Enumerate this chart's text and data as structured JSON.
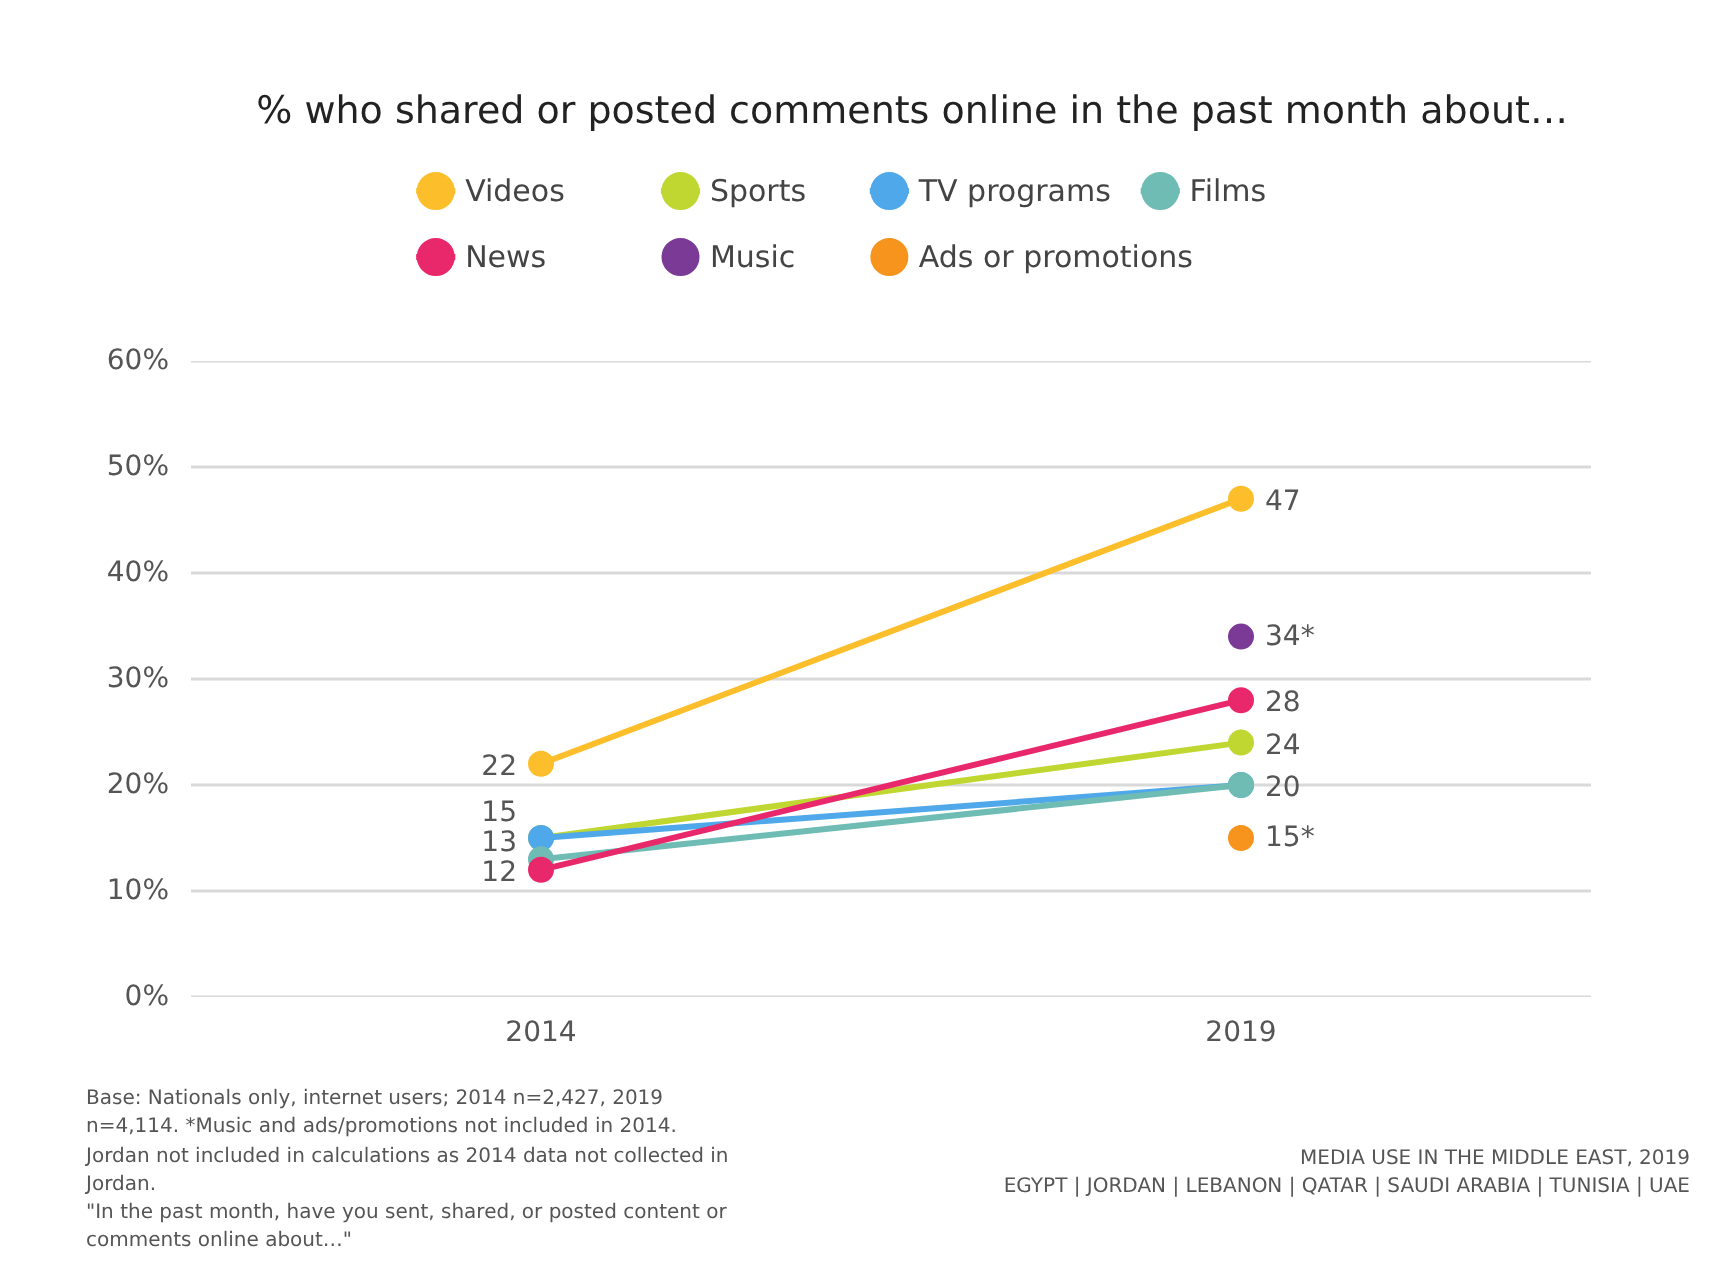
{
  "chart_data": {
    "type": "line",
    "title": "% who shared or posted comments online in the past month about…",
    "categories": [
      "2014",
      "2019"
    ],
    "series": [
      {
        "name": "Videos",
        "color": "#fcbf2b",
        "values": [
          22,
          47
        ],
        "value_labels": [
          "22",
          "47"
        ]
      },
      {
        "name": "Sports",
        "color": "#bfd730",
        "values": [
          15,
          24
        ],
        "value_labels": [
          null,
          "24"
        ]
      },
      {
        "name": "TV programs",
        "color": "#4fa8ea",
        "values": [
          15,
          20
        ],
        "value_labels": [
          "15",
          null
        ]
      },
      {
        "name": "Films",
        "color": "#6fbcb4",
        "values": [
          13,
          20
        ],
        "value_labels": [
          "13",
          "20"
        ]
      },
      {
        "name": "News",
        "color": "#e8286a",
        "values": [
          12,
          28
        ],
        "value_labels": [
          "12",
          "28"
        ]
      },
      {
        "name": "Music",
        "color": "#7b3a96",
        "values": [
          null,
          34
        ],
        "value_labels": [
          null,
          "34*"
        ]
      },
      {
        "name": "Ads or promotions",
        "color": "#f7941d",
        "values": [
          null,
          15
        ],
        "value_labels": [
          null,
          "15*"
        ]
      }
    ],
    "ylim": [
      0,
      60
    ],
    "yticks": [
      {
        "value": 0,
        "label": "0%"
      },
      {
        "value": 10,
        "label": "10%"
      },
      {
        "value": 20,
        "label": "20%"
      },
      {
        "value": 30,
        "label": "30%"
      },
      {
        "value": 40,
        "label": "40%"
      },
      {
        "value": 50,
        "label": "50%"
      },
      {
        "value": 60,
        "label": "60%"
      }
    ],
    "grid": "y",
    "legend": "top",
    "marker": "circle",
    "line_style": "solid",
    "annotations": [
      "Base: Nationals only, internet users; 2014 n=2,427, 2019 n=4,114. *Music and ads/promotions not included in 2014. Jordan not included in calculations as 2014 data not collected in Jordan.",
      "\"In the past month, have you sent, shared, or posted content or comments online about…\"",
      "MEDIA USE IN THE MIDDLE EAST, 2019",
      "EGYPT | JORDAN | LEBANON | QATAR | SAUDI ARABIA | TUNISIA | UAE"
    ]
  }
}
